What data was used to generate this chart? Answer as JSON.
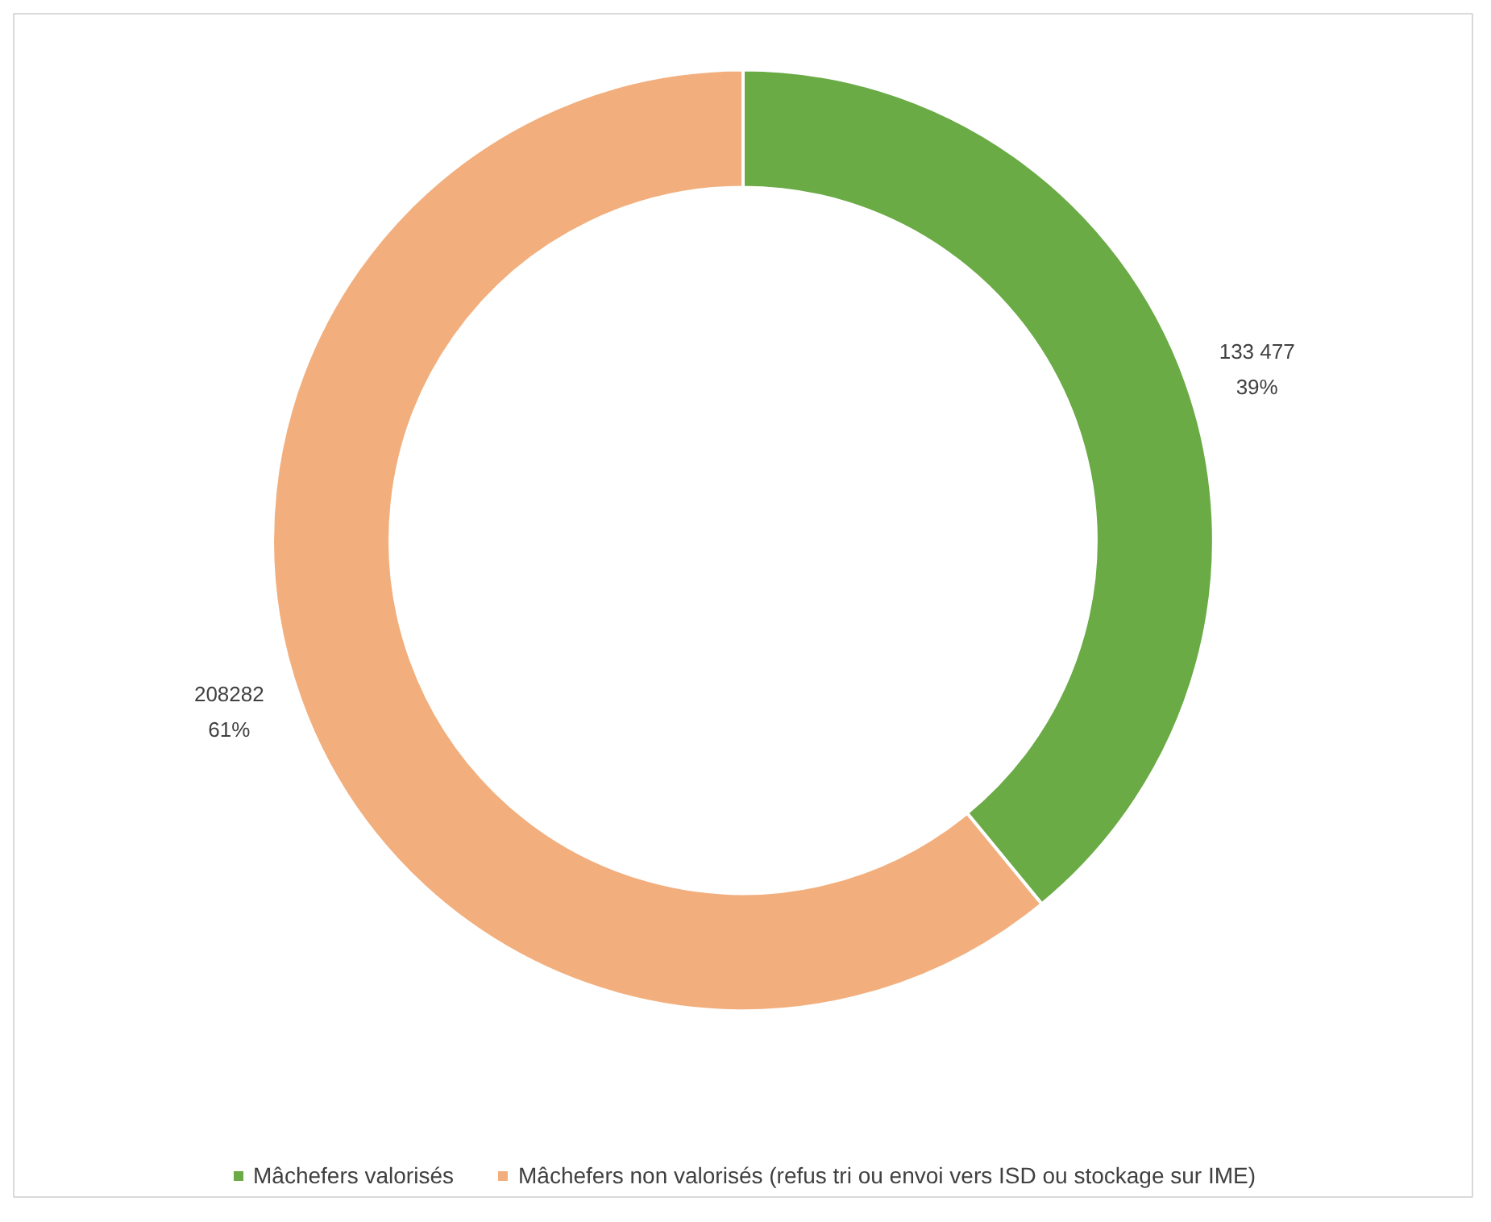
{
  "chart_data": {
    "type": "donut",
    "categories": [
      "Mâchefers valorisés",
      "Mâchefers non valorisés (refus tri ou envoi vers ISD ou stockage sur IME)"
    ],
    "values": [
      133477,
      208282
    ],
    "colors": [
      "#6aab45",
      "#f2af7d"
    ],
    "value_labels": [
      "133 477\n39%",
      "208282\n61%"
    ],
    "legend": "bottom"
  }
}
